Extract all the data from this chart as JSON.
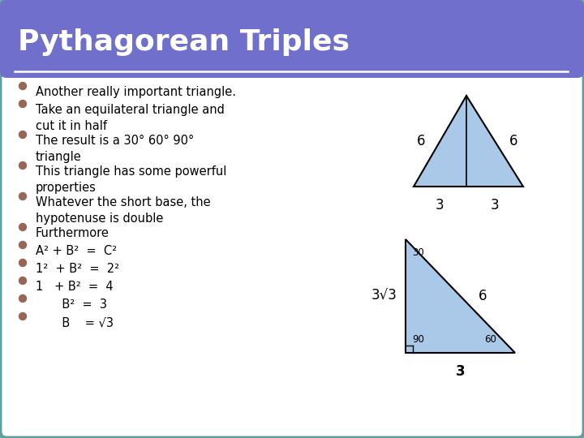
{
  "title": "Pythagorean Triples",
  "title_bg_color": "#7070cc",
  "title_text_color": "#ffffff",
  "body_bg_color": "#ffffff",
  "border_color": "#5f9ea0",
  "bullet_color": "#996655",
  "text_color": "#000000",
  "bullet_items": [
    "Another really important triangle.",
    "Take an equilateral triangle and\ncut it in half",
    "The result is a 30° 60° 90°\ntriangle",
    "This triangle has some powerful\nproperties",
    "Whatever the short base, the\nhypotenuse is double",
    "Furthermore",
    "A² + B²  =  C²",
    "1²  + B²  =  2²",
    "1   + B²  =  4",
    "       B²  =  3",
    "       B    = √3"
  ],
  "triangle_fill": "#aac8e8",
  "triangle_line": "#000000",
  "white_line_color": "#ffffff",
  "title_fontsize": 26,
  "body_fontsize": 10.5
}
